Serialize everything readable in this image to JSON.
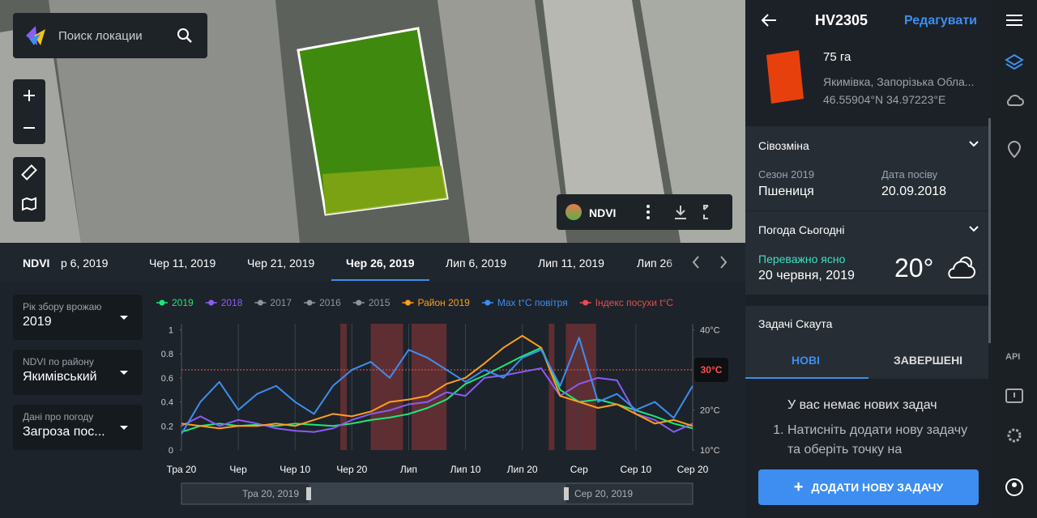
{
  "search": {
    "placeholder": "Поиск локации"
  },
  "map_toolbar": {
    "layer": "NDVI"
  },
  "timeline": {
    "label": "NDVI",
    "dates": [
      "р 6, 2019",
      "Чер 11, 2019",
      "Чер 21, 2019",
      "Чер 26, 2019",
      "Лип 6, 2019",
      "Лип 11, 2019",
      "Лип 26"
    ],
    "selected": 3
  },
  "filters": [
    {
      "label": "Рік збору врожаю",
      "value": "2019"
    },
    {
      "label": "NDVI по району",
      "value": "Якимівський"
    },
    {
      "label": "Дані про погоду",
      "value": "Загроза пос..."
    }
  ],
  "chart_data": {
    "type": "line",
    "categories": [
      "Тра 20",
      null,
      null,
      "Чер",
      null,
      null,
      "Чер 10",
      null,
      null,
      "Чер 20",
      null,
      null,
      "Лип",
      null,
      null,
      "Лип 10",
      null,
      null,
      "Лип 20",
      null,
      null,
      "Сер",
      null,
      null,
      "Сер 10",
      null,
      null,
      "Сер 20"
    ],
    "series": [
      {
        "name": "2019",
        "color": "#1de87a",
        "values": [
          0.15,
          0.2,
          0.22,
          0.2,
          0.21,
          0.2,
          0.22,
          0.21,
          0.2,
          0.22,
          0.25,
          0.27,
          0.3,
          0.35,
          0.42,
          0.55,
          0.62,
          0.7,
          0.78,
          0.85,
          0.5,
          0.4,
          0.42,
          0.38,
          0.33,
          0.28,
          0.22,
          0.18
        ]
      },
      {
        "name": "2018",
        "color": "#8b5cf6",
        "values": [
          0.2,
          0.28,
          0.2,
          0.25,
          0.22,
          0.18,
          0.16,
          0.15,
          0.18,
          0.25,
          0.3,
          0.33,
          0.38,
          0.4,
          0.48,
          0.45,
          0.6,
          0.62,
          0.65,
          0.68,
          0.45,
          0.55,
          0.6,
          0.58,
          0.3,
          0.25,
          0.15,
          0.22
        ]
      },
      {
        "name": "2017",
        "color": "#8a96a3"
      },
      {
        "name": "2016",
        "color": "#8a96a3"
      },
      {
        "name": "2015",
        "color": "#8a96a3"
      },
      {
        "name": "Район 2019",
        "color": "#ff9f1c",
        "values": [
          0.22,
          0.2,
          0.18,
          0.2,
          0.2,
          0.22,
          0.2,
          0.25,
          0.3,
          0.28,
          0.32,
          0.4,
          0.42,
          0.45,
          0.55,
          0.6,
          0.72,
          0.85,
          0.95,
          0.85,
          0.45,
          0.4,
          0.35,
          0.38,
          0.3,
          0.22,
          0.25,
          0.2
        ]
      },
      {
        "name": "Max t°C повітря",
        "color": "#3d8ef0",
        "axis": "y2",
        "values": [
          14,
          22,
          27,
          20,
          24,
          26,
          22,
          19,
          26,
          30,
          32,
          28,
          35,
          33,
          30,
          27,
          30,
          28,
          33,
          35,
          26,
          38,
          22,
          24,
          20,
          22,
          18,
          26
        ]
      },
      {
        "name": "Індекс посухи t°C",
        "color": "#e84c4c"
      }
    ],
    "threshold": {
      "value": 30,
      "label": "30°C"
    },
    "drought_periods": [
      [
        8.39,
        8.73
      ],
      [
        10.0,
        11.7
      ],
      [
        12.15,
        14.0
      ],
      [
        19.4,
        19.7
      ],
      [
        20.3,
        21.9
      ]
    ],
    "ylim": [
      0,
      1.05
    ],
    "yticks": [
      0,
      0.2,
      0.4,
      0.6,
      0.8,
      1
    ],
    "y2lim": [
      10,
      41.5
    ],
    "y2ticks": [
      {
        "value": 10,
        "label": "10°C"
      },
      {
        "value": 20,
        "label": "20°C"
      },
      {
        "value": 40,
        "label": "40°C"
      }
    ],
    "grid": true,
    "range": {
      "start": "Тра 20, 2019",
      "end": "Сер 20, 2019"
    }
  },
  "panel": {
    "field_name": "HV2305",
    "edit": "Редагувати",
    "area": "75 га",
    "location": "Якимівка, Запорізька Обла...",
    "coords": "46.55904°N 34.97223°E",
    "rotation": {
      "title": "Сівозміна",
      "season_label": "Сезон 2019",
      "season_value": "Пшениця",
      "sowing_label": "Дата посіву",
      "sowing_value": "20.09.2018"
    },
    "weather": {
      "title": "Погода Сьогодні",
      "condition": "Переважно ясно",
      "date": "20 червня, 2019",
      "temp": "20°"
    },
    "tasks": {
      "title": "Задачі Скаута",
      "tab_new": "НОВІ",
      "tab_done": "ЗАВЕРШЕНІ",
      "empty": "У вас немає нових задач",
      "step": "Натисніть додати нову задачу та оберіть точку на",
      "add": "ДОДАТИ НОВУ ЗАДАЧУ"
    }
  },
  "sidebar": {
    "api": "API"
  }
}
